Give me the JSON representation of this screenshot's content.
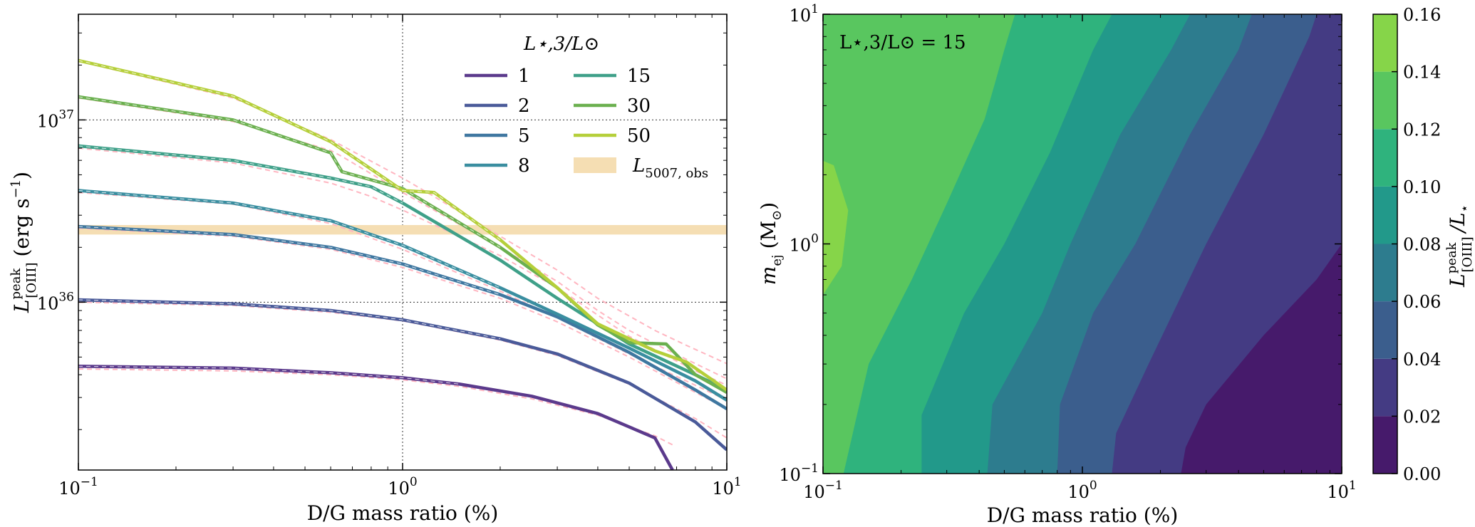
{
  "chart_data": [
    {
      "type": "line",
      "xscale": "log",
      "yscale": "log",
      "xlim": [
        0.1,
        10
      ],
      "ylim": [
        1.2e+35,
        3.8e+37
      ],
      "xlabel": "D/G mass ratio (%)",
      "ylabel": "L[OIII]^peak (erg s^-1)",
      "ylabel_main": "L",
      "ylabel_sup": "peak",
      "ylabel_sub": "[OIII]",
      "ylabel_units": "(erg s",
      "ylabel_units_sup": "−1",
      "ylabel_units_close": ")",
      "xticks": [
        {
          "value": 0.1,
          "base": "10",
          "exp": "−1"
        },
        {
          "value": 1,
          "base": "10",
          "exp": "0"
        },
        {
          "value": 10,
          "base": "10",
          "exp": "1"
        }
      ],
      "yticks": [
        {
          "value": 1e+36,
          "base": "10",
          "exp": "36"
        },
        {
          "value": 1e+37,
          "base": "10",
          "exp": "37"
        }
      ],
      "grid_x": [
        1
      ],
      "grid_y": [
        1e+36,
        1e+37
      ],
      "legend_title": "L⋆,3/L⊙",
      "legend_location": "upper-right",
      "series": [
        {
          "name": "1",
          "color": "#5b3a8c",
          "x": [
            0.1,
            0.3,
            0.6,
            1.0,
            1.5,
            2.5,
            4.0,
            6.0,
            6.8
          ],
          "y": [
            4.45e+35,
            4.35e+35,
            4.1e+35,
            3.85e+35,
            3.55e+35,
            3.05e+35,
            2.45e+35,
            1.8e+35,
            1.2e+35
          ],
          "fit_y": [
            4.3e+35,
            4.2e+35,
            4e+35,
            3.75e+35,
            3.45e+35,
            2.95e+35,
            2.4e+35,
            1.85e+35,
            1.65e+35
          ]
        },
        {
          "name": "2",
          "color": "#4a5a99",
          "x": [
            0.1,
            0.3,
            0.6,
            1.0,
            2.0,
            3.0,
            5.0,
            8.0,
            10.0
          ],
          "y": [
            1.03e+36,
            9.8e+35,
            9e+35,
            8e+35,
            6.3e+35,
            5.2e+35,
            3.6e+35,
            2.2e+35,
            1.55e+35
          ],
          "fit_y": [
            1e+36,
            9.6e+35,
            8.8e+35,
            7.9e+35,
            6.2e+35,
            5.1e+35,
            3.55e+35,
            2.3e+35,
            1.8e+35
          ]
        },
        {
          "name": "5",
          "color": "#3f77a0",
          "x": [
            0.1,
            0.3,
            0.6,
            1.0,
            2.0,
            3.0,
            5.0,
            8.0,
            10.0
          ],
          "y": [
            2.6e+36,
            2.35e+36,
            2e+36,
            1.62e+36,
            1.1e+36,
            8.3e+35,
            5.3e+35,
            3.3e+35,
            2.6e+35
          ],
          "fit_y": [
            2.55e+36,
            2.3e+36,
            1.95e+36,
            1.55e+36,
            1.05e+36,
            7.8e+35,
            5e+35,
            3.2e+35,
            2.6e+35
          ]
        },
        {
          "name": "8",
          "color": "#3a8ea0",
          "x": [
            0.1,
            0.3,
            0.6,
            1.0,
            2.0,
            3.0,
            5.0,
            8.0,
            10.0
          ],
          "y": [
            4.1e+36,
            3.5e+36,
            2.8e+36,
            2.05e+36,
            1.2e+36,
            8.6e+35,
            5.6e+35,
            3.7e+35,
            2.9e+35
          ],
          "fit_y": [
            4e+36,
            3.45e+36,
            2.7e+36,
            1.95e+36,
            1.15e+36,
            8.2e+35,
            5.2e+35,
            3.5e+35,
            2.9e+35
          ]
        },
        {
          "name": "15",
          "color": "#3fa089",
          "x": [
            0.1,
            0.3,
            0.6,
            0.8,
            1.0,
            2.0,
            3.0,
            5.0,
            8.0,
            10.0
          ],
          "y": [
            7.2e+36,
            6e+36,
            4.8e+36,
            4.3e+36,
            3.5e+36,
            1.7e+36,
            1.05e+36,
            5.9e+35,
            4e+35,
            3.3e+35
          ],
          "fit_y": [
            7e+36,
            5.8e+36,
            4.5e+36,
            3.8e+36,
            3.2e+36,
            1.8e+36,
            1.2e+36,
            6.5e+35,
            4.2e+35,
            3.5e+35
          ]
        },
        {
          "name": "30",
          "color": "#6bb04f",
          "x": [
            0.1,
            0.3,
            0.6,
            0.65,
            1.0,
            2.0,
            3.0,
            4.0,
            5.0,
            6.5,
            8.0,
            10.0
          ],
          "y": [
            1.34e+37,
            1e+37,
            6.6e+36,
            5.2e+36,
            4.2e+36,
            2e+36,
            1.2e+36,
            7.5e+35,
            6e+35,
            5.9e+35,
            4e+35,
            3.2e+35
          ],
          "fit_y": [
            1.32e+37,
            9.8e+36,
            6.8e+36,
            6.3e+36,
            4e+36,
            2e+36,
            1.3e+36,
            9e+35,
            7e+35,
            5.5e+35,
            4.6e+35,
            3.8e+35
          ]
        },
        {
          "name": "50",
          "color": "#b5cf3a",
          "x": [
            0.1,
            0.3,
            0.6,
            1.0,
            1.25,
            2.0,
            3.0,
            4.0,
            6.0,
            7.5,
            10.0
          ],
          "y": [
            2.12e+37,
            1.35e+37,
            7.6e+36,
            4.1e+36,
            4e+36,
            2.2e+36,
            1.2e+36,
            7.6e+35,
            5.4e+35,
            4.7e+35,
            3.3e+35
          ],
          "fit_y": [
            2.1e+37,
            1.32e+37,
            7.8e+36,
            4.8e+36,
            3.8e+36,
            2.3e+36,
            1.5e+36,
            1.05e+36,
            7e+35,
            5.8e+35,
            4.6e+35
          ]
        }
      ],
      "bands": [
        {
          "name": "L5007,obs",
          "ymin": 2.35e+36,
          "ymax": 2.65e+36,
          "color": "#f5deb3"
        }
      ],
      "fit_line_color": "#ffb6c1",
      "legend_band_main": "L",
      "legend_band_sub": "5007, obs"
    },
    {
      "type": "contourf",
      "xscale": "log",
      "yscale": "log",
      "xlim": [
        0.1,
        10
      ],
      "ylim": [
        0.1,
        10
      ],
      "xlabel": "D/G mass ratio (%)",
      "ylabel": "m_ej (M⊙)",
      "ylabel_main": "m",
      "ylabel_sub": "ej",
      "ylabel_units": "(M",
      "ylabel_units_sub": "⊙",
      "ylabel_units_close": ")",
      "annotation": "L⋆,3/L⊙ = 15",
      "xticks": [
        {
          "value": 0.1,
          "base": "10",
          "exp": "−1"
        },
        {
          "value": 1,
          "base": "10",
          "exp": "0"
        },
        {
          "value": 10,
          "base": "10",
          "exp": "1"
        }
      ],
      "yticks": [
        {
          "value": 0.1,
          "base": "10",
          "exp": "−1"
        },
        {
          "value": 1,
          "base": "10",
          "exp": "0"
        },
        {
          "value": 10,
          "base": "10",
          "exp": "1"
        }
      ],
      "levels": [
        0.0,
        0.02,
        0.04,
        0.06,
        0.08,
        0.1,
        0.12,
        0.14,
        0.16
      ],
      "level_colors": [
        "#461a6b",
        "#443b83",
        "#3b5e8d",
        "#2d7c8e",
        "#22998a",
        "#2fb37d",
        "#59c65f",
        "#86d549",
        "#d7e219"
      ],
      "colorbar_ticks": [
        "0.00",
        "0.02",
        "0.04",
        "0.06",
        "0.08",
        "0.10",
        "0.12",
        "0.14",
        "0.16"
      ],
      "colorbar_label": "L[OIII]^peak / L⋆",
      "colorbar_label_main": "L",
      "colorbar_label_sup": "peak",
      "colorbar_label_sub": "[OIII]",
      "colorbar_label_tail": "/L",
      "colorbar_label_tail_sub": "⋆",
      "boundaries": [
        {
          "upper_level": 0.02,
          "points": [
            [
              2.4,
              0.1
            ],
            [
              2.5,
              0.13
            ],
            [
              3.0,
              0.2
            ],
            [
              5.0,
              0.4
            ],
            [
              8.0,
              0.7
            ],
            [
              10.0,
              1.0
            ]
          ]
        },
        {
          "upper_level": 0.04,
          "points": [
            [
              1.3,
              0.1
            ],
            [
              1.35,
              0.15
            ],
            [
              1.8,
              0.3
            ],
            [
              3.0,
              1.0
            ],
            [
              5.0,
              3.0
            ],
            [
              7.5,
              8.0
            ],
            [
              8.0,
              10.0
            ]
          ]
        },
        {
          "upper_level": 0.06,
          "points": [
            [
              0.8,
              0.1
            ],
            [
              0.82,
              0.2
            ],
            [
              1.1,
              0.5
            ],
            [
              1.6,
              1.0
            ],
            [
              2.6,
              3.0
            ],
            [
              4.0,
              7.0
            ],
            [
              4.5,
              10.0
            ]
          ]
        },
        {
          "upper_level": 0.08,
          "points": [
            [
              0.43,
              0.1
            ],
            [
              0.45,
              0.2
            ],
            [
              0.7,
              0.5
            ],
            [
              0.9,
              1.0
            ],
            [
              1.4,
              3.0
            ],
            [
              2.2,
              7.0
            ],
            [
              2.6,
              10.0
            ]
          ]
        },
        {
          "upper_level": 0.1,
          "points": [
            [
              0.24,
              0.1
            ],
            [
              0.24,
              0.18
            ],
            [
              0.35,
              0.5
            ],
            [
              0.5,
              1.0
            ],
            [
              0.75,
              2.5
            ],
            [
              1.1,
              7.0
            ],
            [
              1.3,
              10.0
            ]
          ]
        },
        {
          "upper_level": 0.12,
          "points": [
            [
              0.12,
              0.1
            ],
            [
              0.15,
              0.3
            ],
            [
              0.22,
              0.7
            ],
            [
              0.3,
              1.5
            ],
            [
              0.42,
              3.5
            ],
            [
              0.46,
              5.0
            ],
            [
              0.5,
              7.0
            ],
            [
              0.55,
              10.0
            ]
          ]
        }
      ],
      "peak_region": {
        "upper_level": 0.16,
        "points": [
          [
            0.1,
            0.6
          ],
          [
            0.118,
            0.8
          ],
          [
            0.125,
            1.4
          ],
          [
            0.11,
            2.2
          ],
          [
            0.1,
            2.3
          ]
        ]
      }
    }
  ]
}
